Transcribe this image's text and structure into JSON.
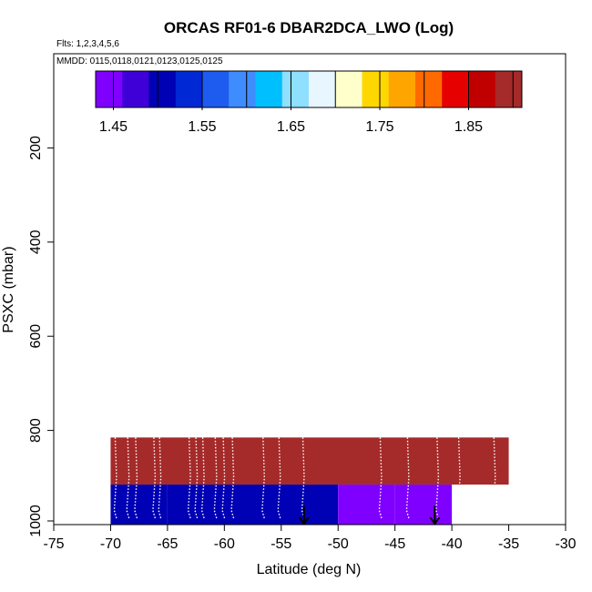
{
  "chart_data": {
    "type": "heatmap",
    "title": "ORCAS RF01-6 DBAR2DCA_LWO (Log)",
    "flights_label": "Flts: 1,2,3,4,5,6",
    "mmdd_label": "MMDD: 0115,0118,0121,0123,0125,0125",
    "xlabel": "Latitude (deg N)",
    "ylabel": "PSXC (mbar)",
    "xlim": [
      -75,
      -30
    ],
    "ylim": [
      1000,
      0
    ],
    "xticks": [
      "-75",
      "-70",
      "-65",
      "-60",
      "-55",
      "-50",
      "-45",
      "-40",
      "-35",
      "-30"
    ],
    "yticks": [
      "200",
      "400",
      "600",
      "800",
      "1000"
    ],
    "colorbar": {
      "min": 1.43,
      "max": 1.91,
      "tick_values": [
        1.45,
        1.55,
        1.65,
        1.75,
        1.85
      ],
      "tick_labels": [
        "1.45",
        "1.55",
        "1.65",
        "1.75",
        "1.85"
      ],
      "colors": [
        "#7f00ff",
        "#3f00d8",
        "#0000b4",
        "#0028d4",
        "#1e5cf0",
        "#3f8cff",
        "#00bfff",
        "#8fdfff",
        "#e8f6ff",
        "#ffffcc",
        "#ffd700",
        "#ffa500",
        "#ff6a00",
        "#e60000",
        "#c00000",
        "#a52a2a"
      ]
    },
    "cells": [
      {
        "lat0": -70,
        "lat1": -35,
        "p0": 815,
        "p1": 915,
        "value": 1.91
      },
      {
        "lat0": -70,
        "lat1": -65,
        "p0": 915,
        "p1": 1000,
        "value": 1.515
      },
      {
        "lat0": -65,
        "lat1": -50,
        "p0": 915,
        "p1": 1000,
        "value": 1.49
      },
      {
        "lat0": -50,
        "lat1": -45,
        "p0": 915,
        "p1": 1000,
        "value": 1.445
      },
      {
        "lat0": -45,
        "lat1": -40,
        "p0": 915,
        "p1": 1000,
        "value": 1.43
      }
    ],
    "profiles": [
      -69.6,
      -68.5,
      -67.8,
      -66.2,
      -65.7,
      -63.1,
      -62.5,
      -61.9,
      -60.8,
      -60.1,
      -59.3,
      -56.6,
      -55.2,
      -53.1,
      -46.3,
      -43.9,
      -41.3,
      -39.4,
      -36.3
    ],
    "arrows": [
      -53.0,
      -41.5
    ]
  }
}
